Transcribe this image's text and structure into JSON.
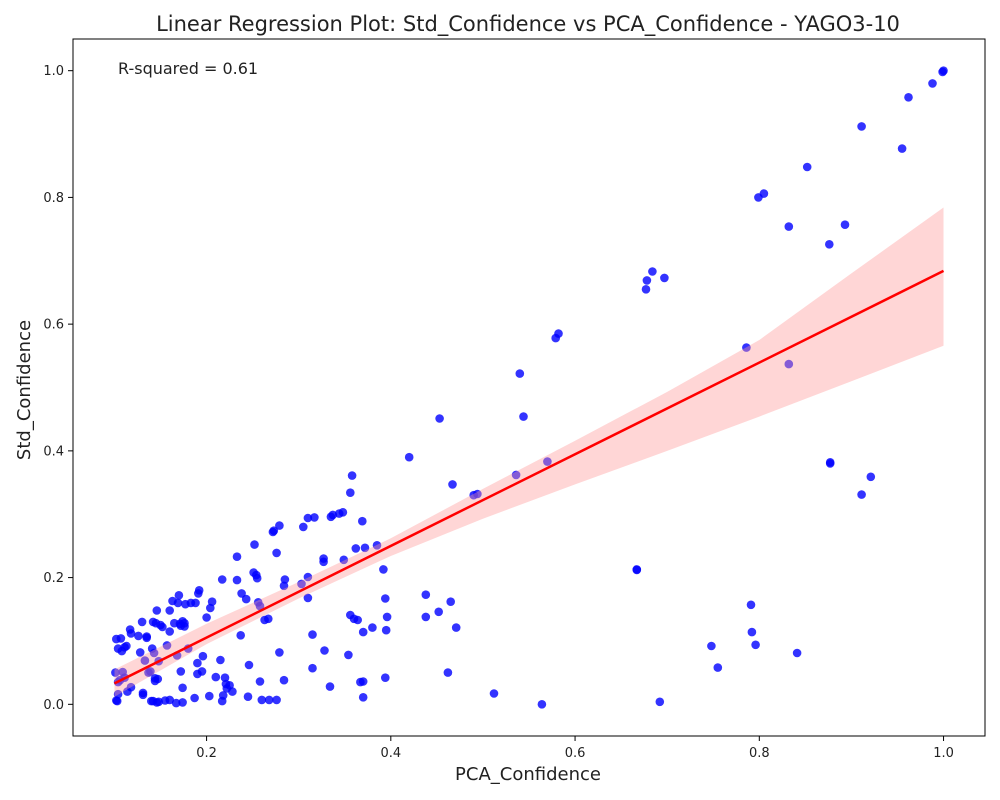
{
  "chart_data": {
    "type": "scatter",
    "title": "Linear Regression Plot: Std_Confidence vs PCA_Confidence - YAGO3-10",
    "xlabel": "PCA_Confidence",
    "ylabel": "Std_Confidence",
    "xlim": [
      0.055,
      1.045
    ],
    "ylim": [
      -0.05,
      1.05
    ],
    "xticks": [
      0.2,
      0.4,
      0.6,
      0.8,
      1.0
    ],
    "xtick_labels": [
      "0.2",
      "0.4",
      "0.6",
      "0.8",
      "1.0"
    ],
    "yticks": [
      0.0,
      0.2,
      0.4,
      0.6,
      0.8,
      1.0
    ],
    "ytick_labels": [
      "0.0",
      "0.2",
      "0.4",
      "0.6",
      "0.8",
      "1.0"
    ],
    "annotation": "R-squared = 0.61",
    "colors": {
      "points": "#0000ff",
      "line": "#ff0000",
      "band": "#ff9999"
    },
    "regression": {
      "x": [
        0.1,
        1.0
      ],
      "y": [
        0.033,
        0.684
      ]
    },
    "confidence_band": {
      "x": [
        0.1,
        0.2,
        0.3,
        0.4,
        0.5,
        0.6,
        0.7,
        0.8,
        0.9,
        1.0
      ],
      "lower": [
        0.012,
        0.095,
        0.167,
        0.234,
        0.293,
        0.347,
        0.4,
        0.454,
        0.51,
        0.566
      ],
      "upper": [
        0.055,
        0.127,
        0.193,
        0.262,
        0.34,
        0.416,
        0.493,
        0.575,
        0.68,
        0.784
      ]
    },
    "points": {
      "x": [
        1.0,
        0.999,
        0.988,
        0.962,
        0.955,
        0.911,
        0.893,
        0.876,
        0.852,
        0.832,
        0.805,
        0.799,
        0.684,
        0.697,
        0.678,
        0.677,
        0.582,
        0.579,
        0.54,
        0.544,
        0.453,
        0.42,
        0.786,
        0.832,
        0.877,
        0.877,
        0.921,
        0.911,
        0.57,
        0.536,
        0.467,
        0.494,
        0.49,
        0.667,
        0.667,
        0.748,
        0.791,
        0.792,
        0.796,
        0.841,
        0.755,
        0.692,
        0.564,
        0.512,
        0.462,
        0.471,
        0.465,
        0.452,
        0.438,
        0.438,
        0.394,
        0.396,
        0.395,
        0.392,
        0.385,
        0.38,
        0.372,
        0.37,
        0.369,
        0.367,
        0.362,
        0.358,
        0.356,
        0.36,
        0.356,
        0.348,
        0.344,
        0.349,
        0.337,
        0.335,
        0.317,
        0.31,
        0.305,
        0.279,
        0.273,
        0.272,
        0.233,
        0.252,
        0.251,
        0.254,
        0.255,
        0.276,
        0.327,
        0.327,
        0.31,
        0.303,
        0.31,
        0.285,
        0.284,
        0.256,
        0.258,
        0.263,
        0.267,
        0.243,
        0.238,
        0.233,
        0.206,
        0.204,
        0.217,
        0.2,
        0.192,
        0.191,
        0.183,
        0.188,
        0.177,
        0.176,
        0.17,
        0.163,
        0.169,
        0.16,
        0.174,
        0.171,
        0.165,
        0.172,
        0.176,
        0.16,
        0.15,
        0.146,
        0.145,
        0.142,
        0.152,
        0.13,
        0.135,
        0.117,
        0.118,
        0.135,
        0.126,
        0.102,
        0.107,
        0.104,
        0.108,
        0.113,
        0.111,
        0.128,
        0.141,
        0.143,
        0.157,
        0.133,
        0.148,
        0.196,
        0.215,
        0.237,
        0.18,
        0.168,
        0.19,
        0.195,
        0.21,
        0.19,
        0.22,
        0.221,
        0.222,
        0.225,
        0.203,
        0.218,
        0.228,
        0.217,
        0.172,
        0.174,
        0.245,
        0.26,
        0.284,
        0.279,
        0.246,
        0.258,
        0.268,
        0.276,
        0.131,
        0.14,
        0.142,
        0.146,
        0.148,
        0.155,
        0.16,
        0.167,
        0.174,
        0.187,
        0.137,
        0.147,
        0.139,
        0.144,
        0.144,
        0.109,
        0.111,
        0.106,
        0.114,
        0.118,
        0.131,
        0.102,
        0.103,
        0.104,
        0.101,
        0.104,
        0.315,
        0.334,
        0.328,
        0.315,
        0.354,
        0.364,
        0.37,
        0.394,
        0.37
      ],
      "y": [
        1.0,
        0.998,
        0.98,
        0.958,
        0.877,
        0.912,
        0.757,
        0.726,
        0.848,
        0.754,
        0.806,
        0.8,
        0.683,
        0.673,
        0.669,
        0.655,
        0.585,
        0.578,
        0.522,
        0.454,
        0.451,
        0.39,
        0.563,
        0.537,
        0.382,
        0.38,
        0.359,
        0.331,
        0.383,
        0.362,
        0.347,
        0.332,
        0.33,
        0.213,
        0.212,
        0.092,
        0.157,
        0.114,
        0.094,
        0.081,
        0.058,
        0.004,
        0.0,
        0.017,
        0.05,
        0.121,
        0.162,
        0.146,
        0.173,
        0.138,
        0.167,
        0.138,
        0.117,
        0.213,
        0.251,
        0.121,
        0.247,
        0.114,
        0.289,
        0.035,
        0.246,
        0.361,
        0.334,
        0.135,
        0.141,
        0.303,
        0.301,
        0.228,
        0.299,
        0.296,
        0.295,
        0.294,
        0.28,
        0.282,
        0.274,
        0.272,
        0.233,
        0.252,
        0.208,
        0.204,
        0.199,
        0.239,
        0.23,
        0.225,
        0.201,
        0.19,
        0.168,
        0.197,
        0.187,
        0.161,
        0.155,
        0.133,
        0.135,
        0.166,
        0.175,
        0.196,
        0.162,
        0.152,
        0.197,
        0.137,
        0.18,
        0.175,
        0.16,
        0.16,
        0.158,
        0.123,
        0.172,
        0.163,
        0.16,
        0.148,
        0.131,
        0.127,
        0.128,
        0.124,
        0.128,
        0.115,
        0.125,
        0.148,
        0.128,
        0.13,
        0.122,
        0.13,
        0.107,
        0.118,
        0.112,
        0.105,
        0.108,
        0.103,
        0.104,
        0.088,
        0.084,
        0.092,
        0.09,
        0.082,
        0.088,
        0.081,
        0.093,
        0.069,
        0.068,
        0.076,
        0.07,
        0.109,
        0.088,
        0.077,
        0.065,
        0.052,
        0.043,
        0.048,
        0.042,
        0.032,
        0.025,
        0.03,
        0.013,
        0.014,
        0.02,
        0.005,
        0.052,
        0.026,
        0.012,
        0.007,
        0.038,
        0.082,
        0.062,
        0.036,
        0.007,
        0.007,
        0.015,
        0.005,
        0.005,
        0.003,
        0.004,
        0.006,
        0.007,
        0.002,
        0.003,
        0.01,
        0.05,
        0.04,
        0.052,
        0.037,
        0.041,
        0.051,
        0.042,
        0.038,
        0.02,
        0.027,
        0.018,
        0.006,
        0.005,
        0.035,
        0.05,
        0.016,
        0.057,
        0.028,
        0.085,
        0.11,
        0.078,
        0.133,
        0.011,
        0.042,
        0.036
      ]
    }
  }
}
